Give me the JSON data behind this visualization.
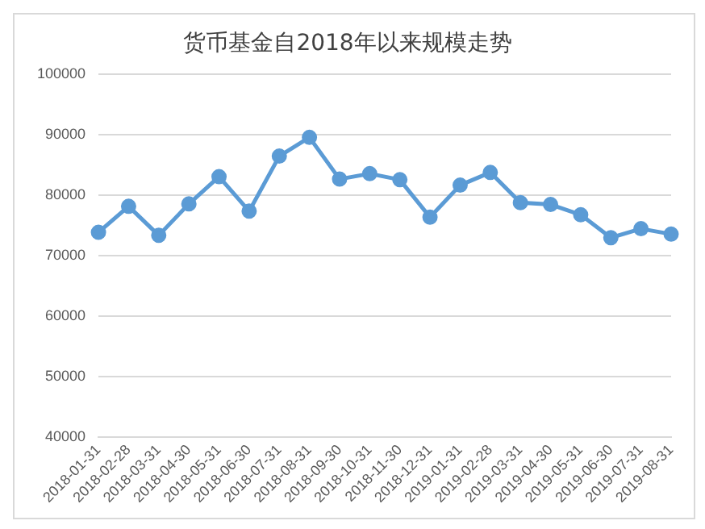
{
  "chart_data": {
    "type": "line",
    "title": "货币基金自2018年以来规模走势",
    "categories": [
      "2018-01-31",
      "2018-02-28",
      "2018-03-31",
      "2018-04-30",
      "2018-05-31",
      "2018-06-30",
      "2018-07-31",
      "2018-08-31",
      "2018-09-30",
      "2018-10-31",
      "2018-11-30",
      "2018-12-31",
      "2019-01-31",
      "2019-02-28",
      "2019-03-31",
      "2019-04-30",
      "2019-05-31",
      "2019-06-30",
      "2019-07-31",
      "2019-08-31"
    ],
    "series": [
      {
        "color": "#5b9bd5",
        "values": [
          73800,
          78100,
          73300,
          78500,
          83000,
          77300,
          86400,
          89500,
          82600,
          83500,
          82500,
          76300,
          81600,
          83700,
          78700,
          78400,
          76700,
          72900,
          74400,
          73500
        ]
      }
    ],
    "ylim": [
      40000,
      100000
    ],
    "yticks": [
      40000,
      50000,
      60000,
      70000,
      80000,
      90000,
      100000
    ],
    "grid": "y",
    "marker": "circle",
    "line_style": "solid",
    "legend": false
  }
}
